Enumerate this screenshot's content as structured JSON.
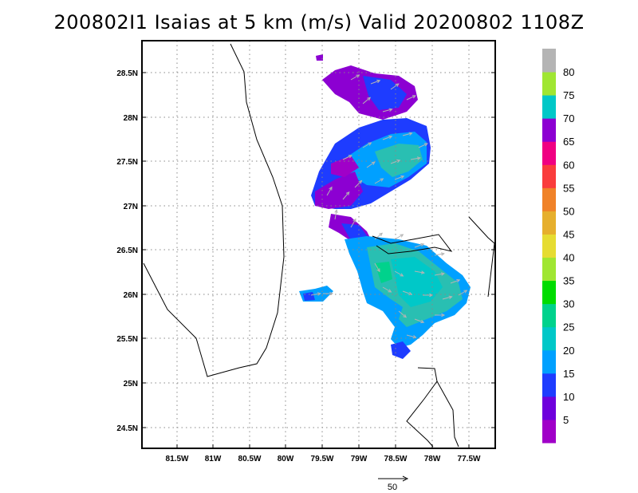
{
  "title": "200802I1 Isaias at 5 km (m/s) Valid 20200802 1108Z",
  "map": {
    "lat_ticks": [
      "28.5N",
      "28N",
      "27.5N",
      "27N",
      "26.5N",
      "26N",
      "25.5N",
      "25N",
      "24.5N"
    ],
    "lon_ticks": [
      "81.5W",
      "81W",
      "80.5W",
      "80W",
      "79.5W",
      "79W",
      "78.5W",
      "78W",
      "77.5W"
    ],
    "extent": {
      "lon_min": -81.94,
      "lon_max": -77.23,
      "lat_min": 24.27,
      "lat_max": 28.83
    },
    "coastline_color": "#000000",
    "grid": "dotted"
  },
  "reference_vector": {
    "label": "50"
  },
  "colorbar": {
    "labels": [
      "5",
      "10",
      "15",
      "20",
      "25",
      "30",
      "35",
      "40",
      "45",
      "50",
      "55",
      "60",
      "65",
      "70",
      "75",
      "80"
    ],
    "colors": [
      "#a000c8",
      "#6e00dc",
      "#1e3cff",
      "#00a0ff",
      "#00c8c8",
      "#00d28c",
      "#00dc00",
      "#a0e632",
      "#e6dc32",
      "#e6af2d",
      "#f08228",
      "#fa3c3c",
      "#f00082",
      "#8c00d2",
      "#00c8c8",
      "#a0e632",
      "#b4b4b4"
    ]
  }
}
